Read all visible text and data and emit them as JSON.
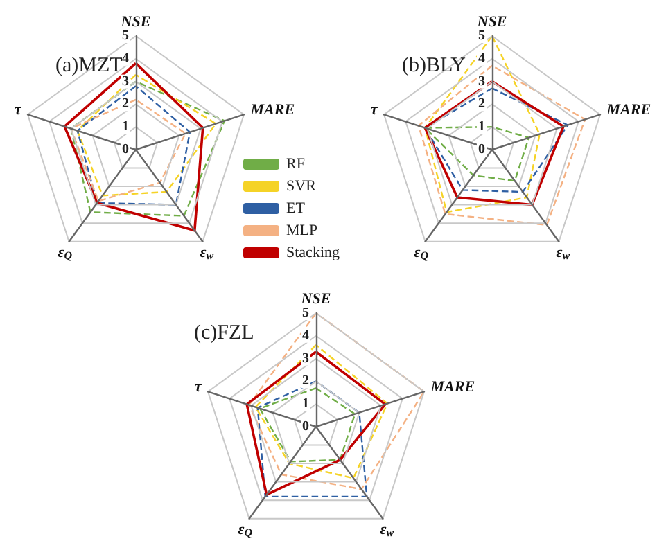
{
  "chart_data": [
    {
      "type": "radar",
      "title": "(a)MZT",
      "categories": [
        "NSE",
        "MARE",
        "ε$_{w}$",
        "ε$_{Q}$",
        "τ"
      ],
      "ylim": [
        0,
        5
      ],
      "yticks": [
        0,
        1,
        2,
        3,
        4,
        5
      ],
      "legend": "right",
      "marker": "none",
      "line_style": "dashed",
      "grid": true,
      "series": [
        {
          "name": "RF",
          "color": "#70ad47",
          "values": [
            3.0,
            4.1,
            3.6,
            3.4,
            3.0
          ]
        },
        {
          "name": "SVR",
          "color": "#f5d327",
          "values": [
            3.3,
            3.7,
            2.3,
            2.5,
            2.7
          ]
        },
        {
          "name": "ET",
          "color": "#2e5fa3",
          "values": [
            2.8,
            2.5,
            3.0,
            2.9,
            2.7
          ]
        },
        {
          "name": "MLP",
          "color": "#f4b183",
          "values": [
            2.2,
            2.3,
            1.8,
            2.8,
            3.0
          ]
        },
        {
          "name": "Stacking",
          "color": "#c00000",
          "line_style": "solid",
          "values": [
            3.8,
            3.1,
            4.4,
            2.9,
            3.3
          ]
        }
      ]
    },
    {
      "type": "radar",
      "title": "(b)BLY",
      "categories": [
        "NSE",
        "MARE",
        "ε$_{w}$",
        "ε$_{Q}$",
        "τ"
      ],
      "ylim": [
        0,
        5
      ],
      "yticks": [
        0,
        1,
        2,
        3,
        4,
        5
      ],
      "marker": "none",
      "line_style": "dashed",
      "grid": true,
      "series": [
        {
          "color": "#70ad47",
          "values": [
            1.0,
            1.7,
            1.7,
            1.4,
            3.1
          ]
        },
        {
          "color": "#f5d327",
          "values": [
            5.0,
            2.2,
            2.6,
            3.4,
            3.1
          ]
        },
        {
          "color": "#2e5fa3",
          "values": [
            2.7,
            3.5,
            2.3,
            2.2,
            3.1
          ]
        },
        {
          "color": "#f4b183",
          "values": [
            3.7,
            4.3,
            4.1,
            3.5,
            3.4
          ]
        },
        {
          "color": "#c00000",
          "line_style": "solid",
          "values": [
            3.0,
            3.3,
            3.0,
            2.6,
            3.1
          ]
        }
      ]
    },
    {
      "type": "radar",
      "title": "(c)FZL",
      "categories": [
        "NSE",
        "MARE",
        "ε$_{w}$",
        "ε$_{Q}$",
        "τ"
      ],
      "ylim": [
        0,
        5
      ],
      "yticks": [
        0,
        1,
        2,
        3,
        4,
        5
      ],
      "marker": "none",
      "line_style": "dashed",
      "grid": true,
      "series": [
        {
          "color": "#70ad47",
          "values": [
            1.7,
            1.8,
            1.8,
            1.9,
            2.6
          ]
        },
        {
          "color": "#f5d327",
          "values": [
            3.6,
            3.3,
            2.8,
            2.0,
            2.8
          ]
        },
        {
          "color": "#2e5fa3",
          "values": [
            2.0,
            2.0,
            3.8,
            3.8,
            2.7
          ]
        },
        {
          "color": "#f4b183",
          "values": [
            5.0,
            5.0,
            3.4,
            2.6,
            3.1
          ]
        },
        {
          "color": "#c00000",
          "line_style": "solid",
          "values": [
            3.3,
            3.2,
            1.8,
            3.7,
            3.2
          ]
        }
      ]
    }
  ]
}
